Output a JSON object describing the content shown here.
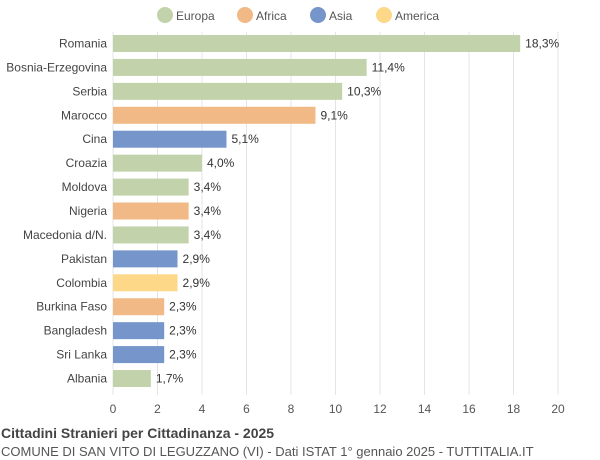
{
  "chart_data": {
    "type": "bar",
    "orientation": "horizontal",
    "title": "Cittadini Stranieri per Cittadinanza - 2025",
    "subtitle": "COMUNE DI SAN VITO DI LEGUZZANO (VI) - Dati ISTAT 1° gennaio 2025 - TUTTITALIA.IT",
    "legend": {
      "position": "top",
      "items": [
        {
          "name": "Europa",
          "color": "#c2d3ab"
        },
        {
          "name": "Africa",
          "color": "#f0b985"
        },
        {
          "name": "Asia",
          "color": "#7595cb"
        },
        {
          "name": "America",
          "color": "#fdd888"
        }
      ]
    },
    "categories": [
      "Romania",
      "Bosnia-Erzegovina",
      "Serbia",
      "Marocco",
      "Cina",
      "Croazia",
      "Moldova",
      "Nigeria",
      "Macedonia d/N.",
      "Pakistan",
      "Colombia",
      "Burkina Faso",
      "Bangladesh",
      "Sri Lanka",
      "Albania"
    ],
    "values": [
      18.3,
      11.4,
      10.3,
      9.1,
      5.1,
      4.0,
      3.4,
      3.4,
      3.4,
      2.9,
      2.9,
      2.3,
      2.3,
      2.3,
      1.7
    ],
    "value_labels": [
      "18,3%",
      "11,4%",
      "10,3%",
      "9,1%",
      "5,1%",
      "4,0%",
      "3,4%",
      "3,4%",
      "3,4%",
      "2,9%",
      "2,9%",
      "2,3%",
      "2,3%",
      "2,3%",
      "1,7%"
    ],
    "groups": [
      "Europa",
      "Europa",
      "Europa",
      "Africa",
      "Asia",
      "Europa",
      "Europa",
      "Africa",
      "Europa",
      "Asia",
      "America",
      "Africa",
      "Asia",
      "Asia",
      "Europa"
    ],
    "xlim": [
      0,
      20
    ],
    "xticks": [
      0,
      2,
      4,
      6,
      8,
      10,
      12,
      14,
      16,
      18,
      20
    ],
    "grid": true
  }
}
